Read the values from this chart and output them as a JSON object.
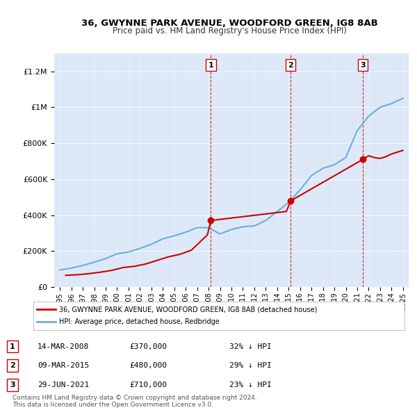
{
  "title": "36, GWYNNE PARK AVENUE, WOODFORD GREEN, IG8 8AB",
  "subtitle": "Price paid vs. HM Land Registry's House Price Index (HPI)",
  "bg_color": "#f0f4ff",
  "plot_bg_color": "#dce8f8",
  "sale_dates": [
    "2008-03-14",
    "2015-03-09",
    "2021-06-29"
  ],
  "sale_prices": [
    370000,
    480000,
    710000
  ],
  "sale_labels": [
    "1",
    "2",
    "3"
  ],
  "hpi_years": [
    1995,
    1996,
    1997,
    1998,
    1999,
    2000,
    2001,
    2002,
    2003,
    2004,
    2005,
    2006,
    2007,
    2008,
    2009,
    2010,
    2011,
    2012,
    2013,
    2014,
    2015,
    2016,
    2017,
    2018,
    2019,
    2020,
    2021,
    2022,
    2023,
    2024,
    2025
  ],
  "hpi_values": [
    95000,
    105000,
    120000,
    138000,
    158000,
    185000,
    195000,
    215000,
    238000,
    268000,
    285000,
    305000,
    330000,
    330000,
    295000,
    320000,
    335000,
    340000,
    370000,
    420000,
    470000,
    540000,
    620000,
    660000,
    680000,
    720000,
    870000,
    950000,
    1000000,
    1020000,
    1050000
  ],
  "property_years_x": [
    1995.5,
    1996.5,
    1997.5,
    1998.5,
    1999.5,
    2000.5,
    2001.5,
    2002.5,
    2003.5,
    2004.5,
    2005.5,
    2006.5,
    2007.9,
    2008.2,
    2014.8,
    2015.2,
    2021.5,
    2022.0,
    2022.5,
    2023.0,
    2023.5,
    2024.0,
    2024.5,
    2025.0
  ],
  "property_values_y": [
    65000,
    68000,
    74000,
    82000,
    92000,
    108000,
    115000,
    128000,
    148000,
    168000,
    182000,
    205000,
    290000,
    370000,
    420000,
    480000,
    710000,
    730000,
    720000,
    715000,
    725000,
    740000,
    750000,
    760000
  ],
  "red_color": "#cc0000",
  "blue_color": "#6baed6",
  "vline_color": "#cc0000",
  "ylabel_color": "#333333",
  "legend_sale_label": "36, GWYNNE PARK AVENUE, WOODFORD GREEN, IG8 8AB (detached house)",
  "legend_hpi_label": "HPI: Average price, detached house, Redbridge",
  "table_data": [
    {
      "num": "1",
      "date": "14-MAR-2008",
      "price": "£370,000",
      "change": "32% ↓ HPI"
    },
    {
      "num": "2",
      "date": "09-MAR-2015",
      "price": "£480,000",
      "change": "29% ↓ HPI"
    },
    {
      "num": "3",
      "date": "29-JUN-2021",
      "price": "£710,000",
      "change": "23% ↓ HPI"
    }
  ],
  "footer": "Contains HM Land Registry data © Crown copyright and database right 2024.\nThis data is licensed under the Open Government Licence v3.0.",
  "ylim_max": 1300000,
  "xlim_min": 1994.5,
  "xlim_max": 2025.5
}
